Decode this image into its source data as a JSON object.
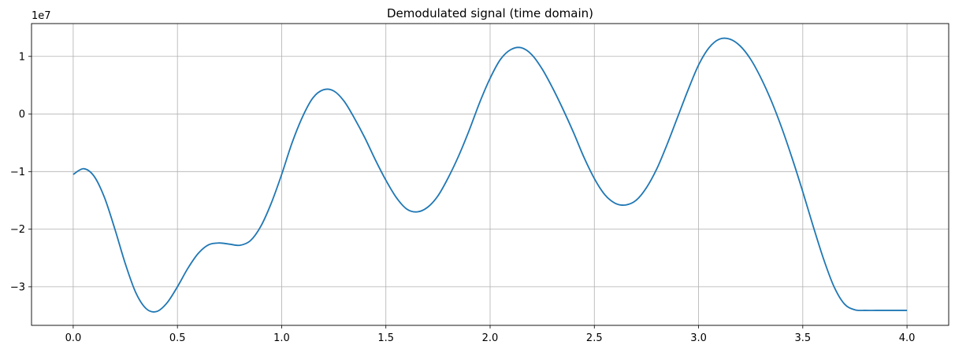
{
  "chart_data": {
    "type": "line",
    "title": "Demodulated signal (time domain)",
    "xlabel": "",
    "ylabel": "",
    "y_offset_label": "1e7",
    "grid": true,
    "xlim": [
      -0.2,
      4.2
    ],
    "ylim": [
      -3.67,
      1.57
    ],
    "x_ticks": [
      0.0,
      0.5,
      1.0,
      1.5,
      2.0,
      2.5,
      3.0,
      3.5,
      4.0
    ],
    "x_tick_labels": [
      "0.0",
      "0.5",
      "1.0",
      "1.5",
      "2.0",
      "2.5",
      "3.0",
      "3.5",
      "4.0"
    ],
    "y_ticks": [
      -3,
      -2,
      -1,
      0,
      1
    ],
    "y_tick_labels": [
      "−3",
      "−2",
      "−1",
      "0",
      "1"
    ],
    "series": [
      {
        "color": "#1f77b4",
        "x": [
          0.0,
          0.05,
          0.1,
          0.15,
          0.2,
          0.25,
          0.3,
          0.35,
          0.4,
          0.45,
          0.5,
          0.55,
          0.6,
          0.65,
          0.7,
          0.75,
          0.8,
          0.85,
          0.9,
          0.95,
          1.0,
          1.05,
          1.1,
          1.15,
          1.2,
          1.25,
          1.3,
          1.35,
          1.4,
          1.45,
          1.5,
          1.55,
          1.6,
          1.65,
          1.7,
          1.75,
          1.8,
          1.85,
          1.9,
          1.95,
          2.0,
          2.05,
          2.1,
          2.15,
          2.2,
          2.25,
          2.3,
          2.35,
          2.4,
          2.45,
          2.5,
          2.55,
          2.6,
          2.65,
          2.7,
          2.75,
          2.8,
          2.85,
          2.9,
          2.95,
          3.0,
          3.05,
          3.1,
          3.15,
          3.2,
          3.25,
          3.3,
          3.35,
          3.4,
          3.45,
          3.5,
          3.55,
          3.6,
          3.65,
          3.7,
          3.75,
          3.8,
          3.85,
          3.9,
          3.95,
          4.0
        ],
        "y": [
          -1.05,
          -0.95,
          -1.08,
          -1.45,
          -2.0,
          -2.6,
          -3.1,
          -3.38,
          -3.43,
          -3.28,
          -3.0,
          -2.68,
          -2.42,
          -2.27,
          -2.24,
          -2.26,
          -2.28,
          -2.2,
          -1.95,
          -1.55,
          -1.05,
          -0.5,
          -0.05,
          0.28,
          0.42,
          0.4,
          0.22,
          -0.08,
          -0.42,
          -0.8,
          -1.15,
          -1.45,
          -1.65,
          -1.7,
          -1.62,
          -1.42,
          -1.1,
          -0.72,
          -0.28,
          0.2,
          0.62,
          0.95,
          1.12,
          1.15,
          1.03,
          0.78,
          0.45,
          0.08,
          -0.32,
          -0.75,
          -1.12,
          -1.4,
          -1.55,
          -1.58,
          -1.5,
          -1.28,
          -0.95,
          -0.52,
          -0.05,
          0.42,
          0.85,
          1.15,
          1.3,
          1.3,
          1.18,
          0.95,
          0.62,
          0.22,
          -0.25,
          -0.78,
          -1.35,
          -1.95,
          -2.52,
          -3.0,
          -3.3,
          -3.4,
          -3.41,
          -3.41,
          -3.41,
          -3.41,
          -3.41
        ]
      }
    ]
  }
}
